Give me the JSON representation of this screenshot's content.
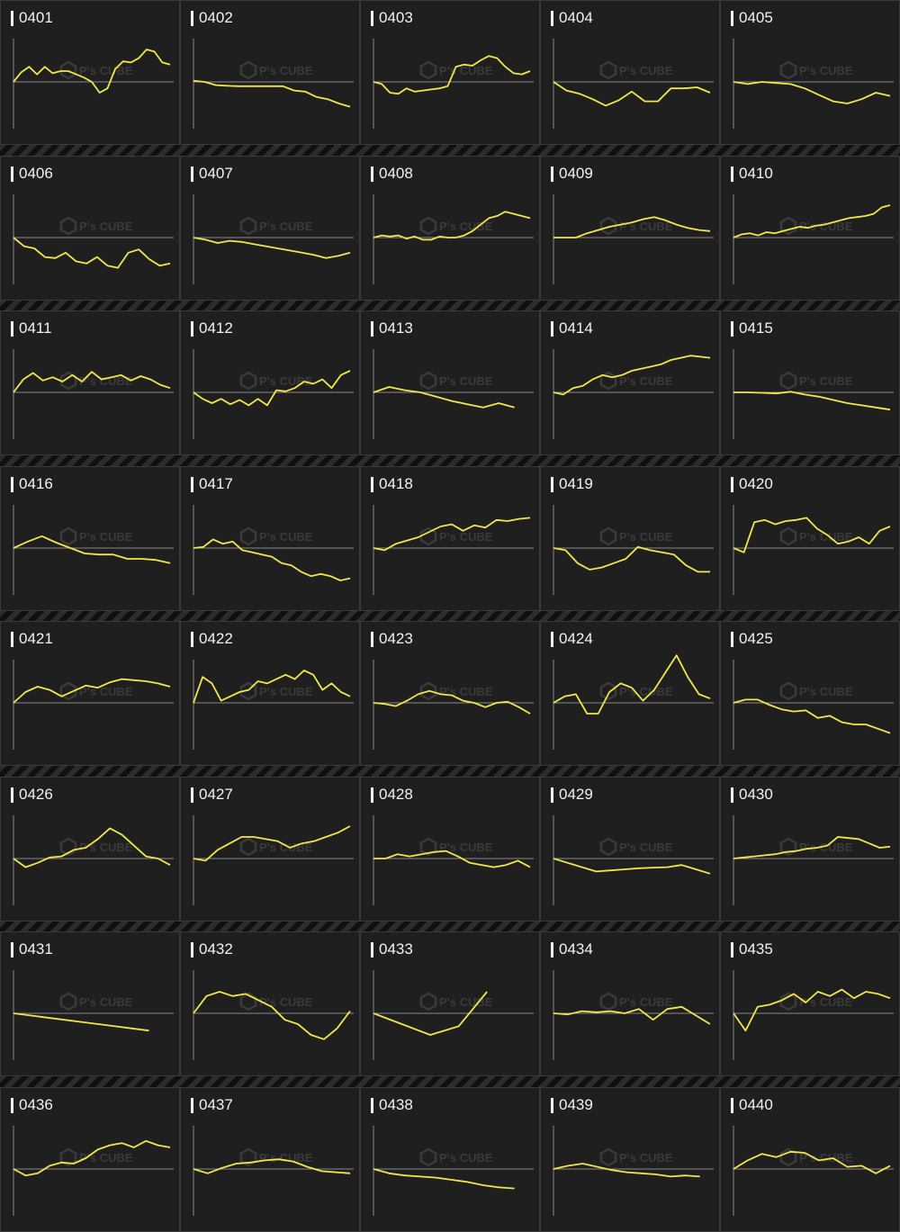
{
  "colors": {
    "line": "#f2e64a",
    "axis": "#8a8a8a",
    "panel": "#1f1f1f",
    "text": "#f2f2f2",
    "watermark": "#3a3a3a"
  },
  "watermark": {
    "logo_icon": "cube-icon",
    "brand": "P's CUBE"
  },
  "chart_data": [
    {
      "type": "line",
      "label": "0401",
      "y": [
        0,
        0.45,
        0.7,
        0.35,
        0.7,
        0.4,
        0.5,
        0.5,
        0.35,
        0.2,
        0,
        -0.5,
        -0.3,
        0.6,
        0.95,
        0.9,
        1.1,
        1.5,
        1.4,
        0.9,
        0.8
      ]
    },
    {
      "type": "line",
      "label": "0402",
      "y": [
        0.05,
        0,
        -0.15,
        -0.18,
        -0.2,
        -0.2,
        -0.2,
        -0.2,
        -0.2,
        -0.4,
        -0.45,
        -0.7,
        -0.8,
        -1.0,
        -1.15
      ]
    },
    {
      "type": "line",
      "label": "0403",
      "y": [
        0,
        -0.1,
        -0.5,
        -0.55,
        -0.3,
        -0.45,
        -0.4,
        -0.35,
        -0.3,
        -0.2,
        0.7,
        0.8,
        0.75,
        1.0,
        1.2,
        1.1,
        0.7,
        0.4,
        0.35,
        0.5
      ]
    },
    {
      "type": "line",
      "label": "0404",
      "y": [
        0,
        -0.4,
        -0.55,
        -0.8,
        -1.1,
        -0.85,
        -0.45,
        -0.9,
        -0.9,
        -0.3,
        -0.3,
        -0.25,
        -0.5
      ]
    },
    {
      "type": "line",
      "label": "0405",
      "y": [
        0,
        -0.1,
        0,
        -0.05,
        -0.1,
        -0.3,
        -0.6,
        -0.9,
        -1.0,
        -0.8,
        -0.5,
        -0.65
      ]
    },
    {
      "type": "line",
      "label": "0406",
      "y": [
        0,
        -0.4,
        -0.5,
        -0.9,
        -0.95,
        -0.7,
        -1.1,
        -1.2,
        -0.9,
        -1.3,
        -1.4,
        -0.7,
        -0.55,
        -1.0,
        -1.3,
        -1.2
      ]
    },
    {
      "type": "line",
      "label": "0407",
      "y": [
        0,
        -0.1,
        -0.25,
        -0.15,
        -0.2,
        -0.3,
        -0.4,
        -0.5,
        -0.6,
        -0.7,
        -0.8,
        -0.95,
        -0.85,
        -0.7
      ]
    },
    {
      "type": "line",
      "label": "0408",
      "y": [
        0,
        0.1,
        0.05,
        0.1,
        -0.05,
        0.05,
        -0.1,
        -0.1,
        0.05,
        0,
        0,
        0.1,
        0.3,
        0.6,
        0.9,
        1.0,
        1.2,
        1.1,
        1.0,
        0.9
      ]
    },
    {
      "type": "line",
      "label": "0409",
      "y": [
        0,
        0,
        0,
        0.2,
        0.35,
        0.5,
        0.6,
        0.7,
        0.85,
        0.95,
        0.8,
        0.6,
        0.45,
        0.35,
        0.3
      ]
    },
    {
      "type": "line",
      "label": "0410",
      "y": [
        0,
        0.15,
        0.2,
        0.1,
        0.25,
        0.2,
        0.3,
        0.4,
        0.5,
        0.45,
        0.55,
        0.6,
        0.7,
        0.8,
        0.9,
        0.95,
        1.0,
        1.1,
        1.4,
        1.5
      ]
    },
    {
      "type": "line",
      "label": "0411",
      "y": [
        0,
        0.6,
        0.9,
        0.55,
        0.7,
        0.5,
        0.8,
        0.5,
        0.95,
        0.6,
        0.7,
        0.8,
        0.55,
        0.75,
        0.6,
        0.35,
        0.2
      ]
    },
    {
      "type": "line",
      "label": "0412",
      "y": [
        0,
        -0.3,
        -0.5,
        -0.3,
        -0.55,
        -0.35,
        -0.6,
        -0.3,
        -0.6,
        0.1,
        0.05,
        0.2,
        0.5,
        0.4,
        0.6,
        0.2,
        0.8,
        1.0
      ]
    },
    {
      "type": "line",
      "label": "0413",
      "y": [
        0,
        0.25,
        0.1,
        0,
        -0.2,
        -0.4,
        -0.55,
        -0.7,
        -0.5,
        -0.7
      ]
    },
    {
      "type": "line",
      "label": "0414",
      "y": [
        0,
        -0.1,
        0.2,
        0.3,
        0.6,
        0.8,
        0.7,
        0.8,
        1.0,
        1.1,
        1.2,
        1.3,
        1.5,
        1.6,
        1.7,
        1.65,
        1.6
      ]
    },
    {
      "type": "line",
      "label": "0415",
      "y": [
        0,
        0,
        -0.02,
        -0.05,
        0.03,
        -0.1,
        -0.2,
        -0.35,
        -0.5,
        -0.6,
        -0.7,
        -0.8
      ]
    },
    {
      "type": "line",
      "label": "0416",
      "y": [
        0,
        0.3,
        0.55,
        0.25,
        0,
        -0.25,
        -0.3,
        -0.3,
        -0.5,
        -0.5,
        -0.55,
        -0.7
      ]
    },
    {
      "type": "line",
      "label": "0417",
      "y": [
        0,
        0.05,
        0.4,
        0.2,
        0.3,
        -0.1,
        -0.2,
        -0.3,
        -0.4,
        -0.7,
        -0.8,
        -1.1,
        -1.3,
        -1.2,
        -1.3,
        -1.5,
        -1.4
      ]
    },
    {
      "type": "line",
      "label": "0418",
      "y": [
        0,
        -0.1,
        0.2,
        0.35,
        0.5,
        0.75,
        1.0,
        1.1,
        0.8,
        1.05,
        0.95,
        1.3,
        1.25,
        1.35,
        1.4
      ]
    },
    {
      "type": "line",
      "label": "0419",
      "y": [
        0,
        -0.1,
        -0.7,
        -1.0,
        -0.9,
        -0.7,
        -0.5,
        0.05,
        -0.1,
        -0.2,
        -0.3,
        -0.8,
        -1.1,
        -1.1
      ]
    },
    {
      "type": "line",
      "label": "0420",
      "y": [
        0,
        -0.2,
        1.2,
        1.3,
        1.1,
        1.25,
        1.3,
        1.4,
        0.9,
        0.6,
        0.2,
        0.3,
        0.5,
        0.2,
        0.8,
        1.0
      ]
    },
    {
      "type": "line",
      "label": "0421",
      "y": [
        0,
        0.5,
        0.75,
        0.6,
        0.3,
        0.55,
        0.8,
        0.7,
        0.95,
        1.1,
        1.05,
        1.0,
        0.9,
        0.75
      ]
    },
    {
      "type": "line",
      "label": "0422",
      "y": [
        0,
        1.2,
        0.9,
        0.1,
        0.3,
        0.5,
        0.6,
        1.0,
        0.9,
        1.1,
        1.3,
        1.1,
        1.5,
        1.3,
        0.6,
        0.9,
        0.5,
        0.3
      ]
    },
    {
      "type": "line",
      "label": "0423",
      "y": [
        0,
        -0.05,
        -0.15,
        0.1,
        0.4,
        0.55,
        0.4,
        0.35,
        0.1,
        0,
        -0.2,
        0,
        0.05,
        -0.2,
        -0.5
      ]
    },
    {
      "type": "line",
      "label": "0424",
      "y": [
        0,
        0.3,
        0.4,
        -0.5,
        -0.5,
        0.5,
        0.9,
        0.7,
        0.1,
        0.6,
        1.4,
        2.2,
        1.2,
        0.4,
        0.2
      ]
    },
    {
      "type": "line",
      "label": "0425",
      "y": [
        0,
        0.15,
        0.15,
        -0.1,
        -0.3,
        -0.4,
        -0.35,
        -0.7,
        -0.6,
        -0.9,
        -1.0,
        -1.0,
        -1.2,
        -1.4
      ]
    },
    {
      "type": "line",
      "label": "0426",
      "y": [
        0,
        -0.4,
        -0.2,
        0.05,
        0.1,
        0.4,
        0.5,
        0.9,
        1.4,
        1.1,
        0.6,
        0.1,
        0,
        -0.3
      ]
    },
    {
      "type": "line",
      "label": "0427",
      "y": [
        0,
        -0.1,
        0.4,
        0.7,
        1.0,
        1.0,
        0.9,
        0.8,
        0.5,
        0.7,
        0.8,
        1.0,
        1.2,
        1.5
      ]
    },
    {
      "type": "line",
      "label": "0428",
      "y": [
        0,
        0,
        0.2,
        0.1,
        0.2,
        0.3,
        0.35,
        0.1,
        -0.2,
        -0.3,
        -0.4,
        -0.3,
        -0.1,
        -0.4
      ]
    },
    {
      "type": "line",
      "label": "0429",
      "y": [
        0,
        -0.2,
        -0.4,
        -0.6,
        -0.55,
        -0.5,
        -0.45,
        -0.42,
        -0.4,
        -0.3,
        -0.5,
        -0.7
      ]
    },
    {
      "type": "line",
      "label": "0430",
      "y": [
        0,
        0.05,
        0.1,
        0.15,
        0.2,
        0.3,
        0.35,
        0.45,
        0.5,
        0.6,
        1.0,
        0.95,
        0.9,
        0.7,
        0.5,
        0.55
      ]
    },
    {
      "type": "line",
      "label": "0431",
      "y": [
        0,
        -0.1,
        -0.2,
        -0.3,
        -0.4,
        -0.5,
        -0.6,
        -0.7,
        -0.8
      ]
    },
    {
      "type": "line",
      "label": "0432",
      "y": [
        0,
        0.8,
        1.0,
        0.8,
        0.9,
        0.6,
        0.3,
        -0.3,
        -0.5,
        -1.0,
        -1.2,
        -0.7,
        0.1
      ]
    },
    {
      "type": "line",
      "label": "0433",
      "y": [
        0,
        -0.5,
        -1.0,
        -0.6,
        1.0
      ]
    },
    {
      "type": "line",
      "label": "0434",
      "y": [
        0,
        -0.05,
        0.1,
        0.05,
        0.1,
        0,
        0.2,
        -0.3,
        0.2,
        0.3,
        -0.1,
        -0.5
      ]
    },
    {
      "type": "line",
      "label": "0435",
      "y": [
        0,
        -0.8,
        0.3,
        0.4,
        0.6,
        0.9,
        0.5,
        1.0,
        0.8,
        1.1,
        0.7,
        1.0,
        0.9,
        0.7
      ]
    },
    {
      "type": "line",
      "label": "0436",
      "y": [
        0,
        -0.3,
        -0.2,
        0.15,
        0.3,
        0.25,
        0.5,
        0.9,
        1.1,
        1.2,
        1.0,
        1.3,
        1.1,
        1.0
      ]
    },
    {
      "type": "line",
      "label": "0437",
      "y": [
        0,
        -0.2,
        0.05,
        0.25,
        0.3,
        0.4,
        0.45,
        0.35,
        0.1,
        -0.1,
        -0.15,
        -0.2
      ]
    },
    {
      "type": "line",
      "label": "0438",
      "y": [
        0,
        -0.2,
        -0.3,
        -0.35,
        -0.4,
        -0.5,
        -0.6,
        -0.75,
        -0.85,
        -0.9
      ]
    },
    {
      "type": "line",
      "label": "0439",
      "y": [
        0,
        0.15,
        0.25,
        0.1,
        -0.05,
        -0.15,
        -0.2,
        -0.25,
        -0.35,
        -0.3,
        -0.35
      ]
    },
    {
      "type": "line",
      "label": "0440",
      "y": [
        0,
        0.4,
        0.7,
        0.55,
        0.8,
        0.75,
        0.4,
        0.5,
        0.1,
        0.15,
        -0.2,
        0.15
      ]
    }
  ]
}
